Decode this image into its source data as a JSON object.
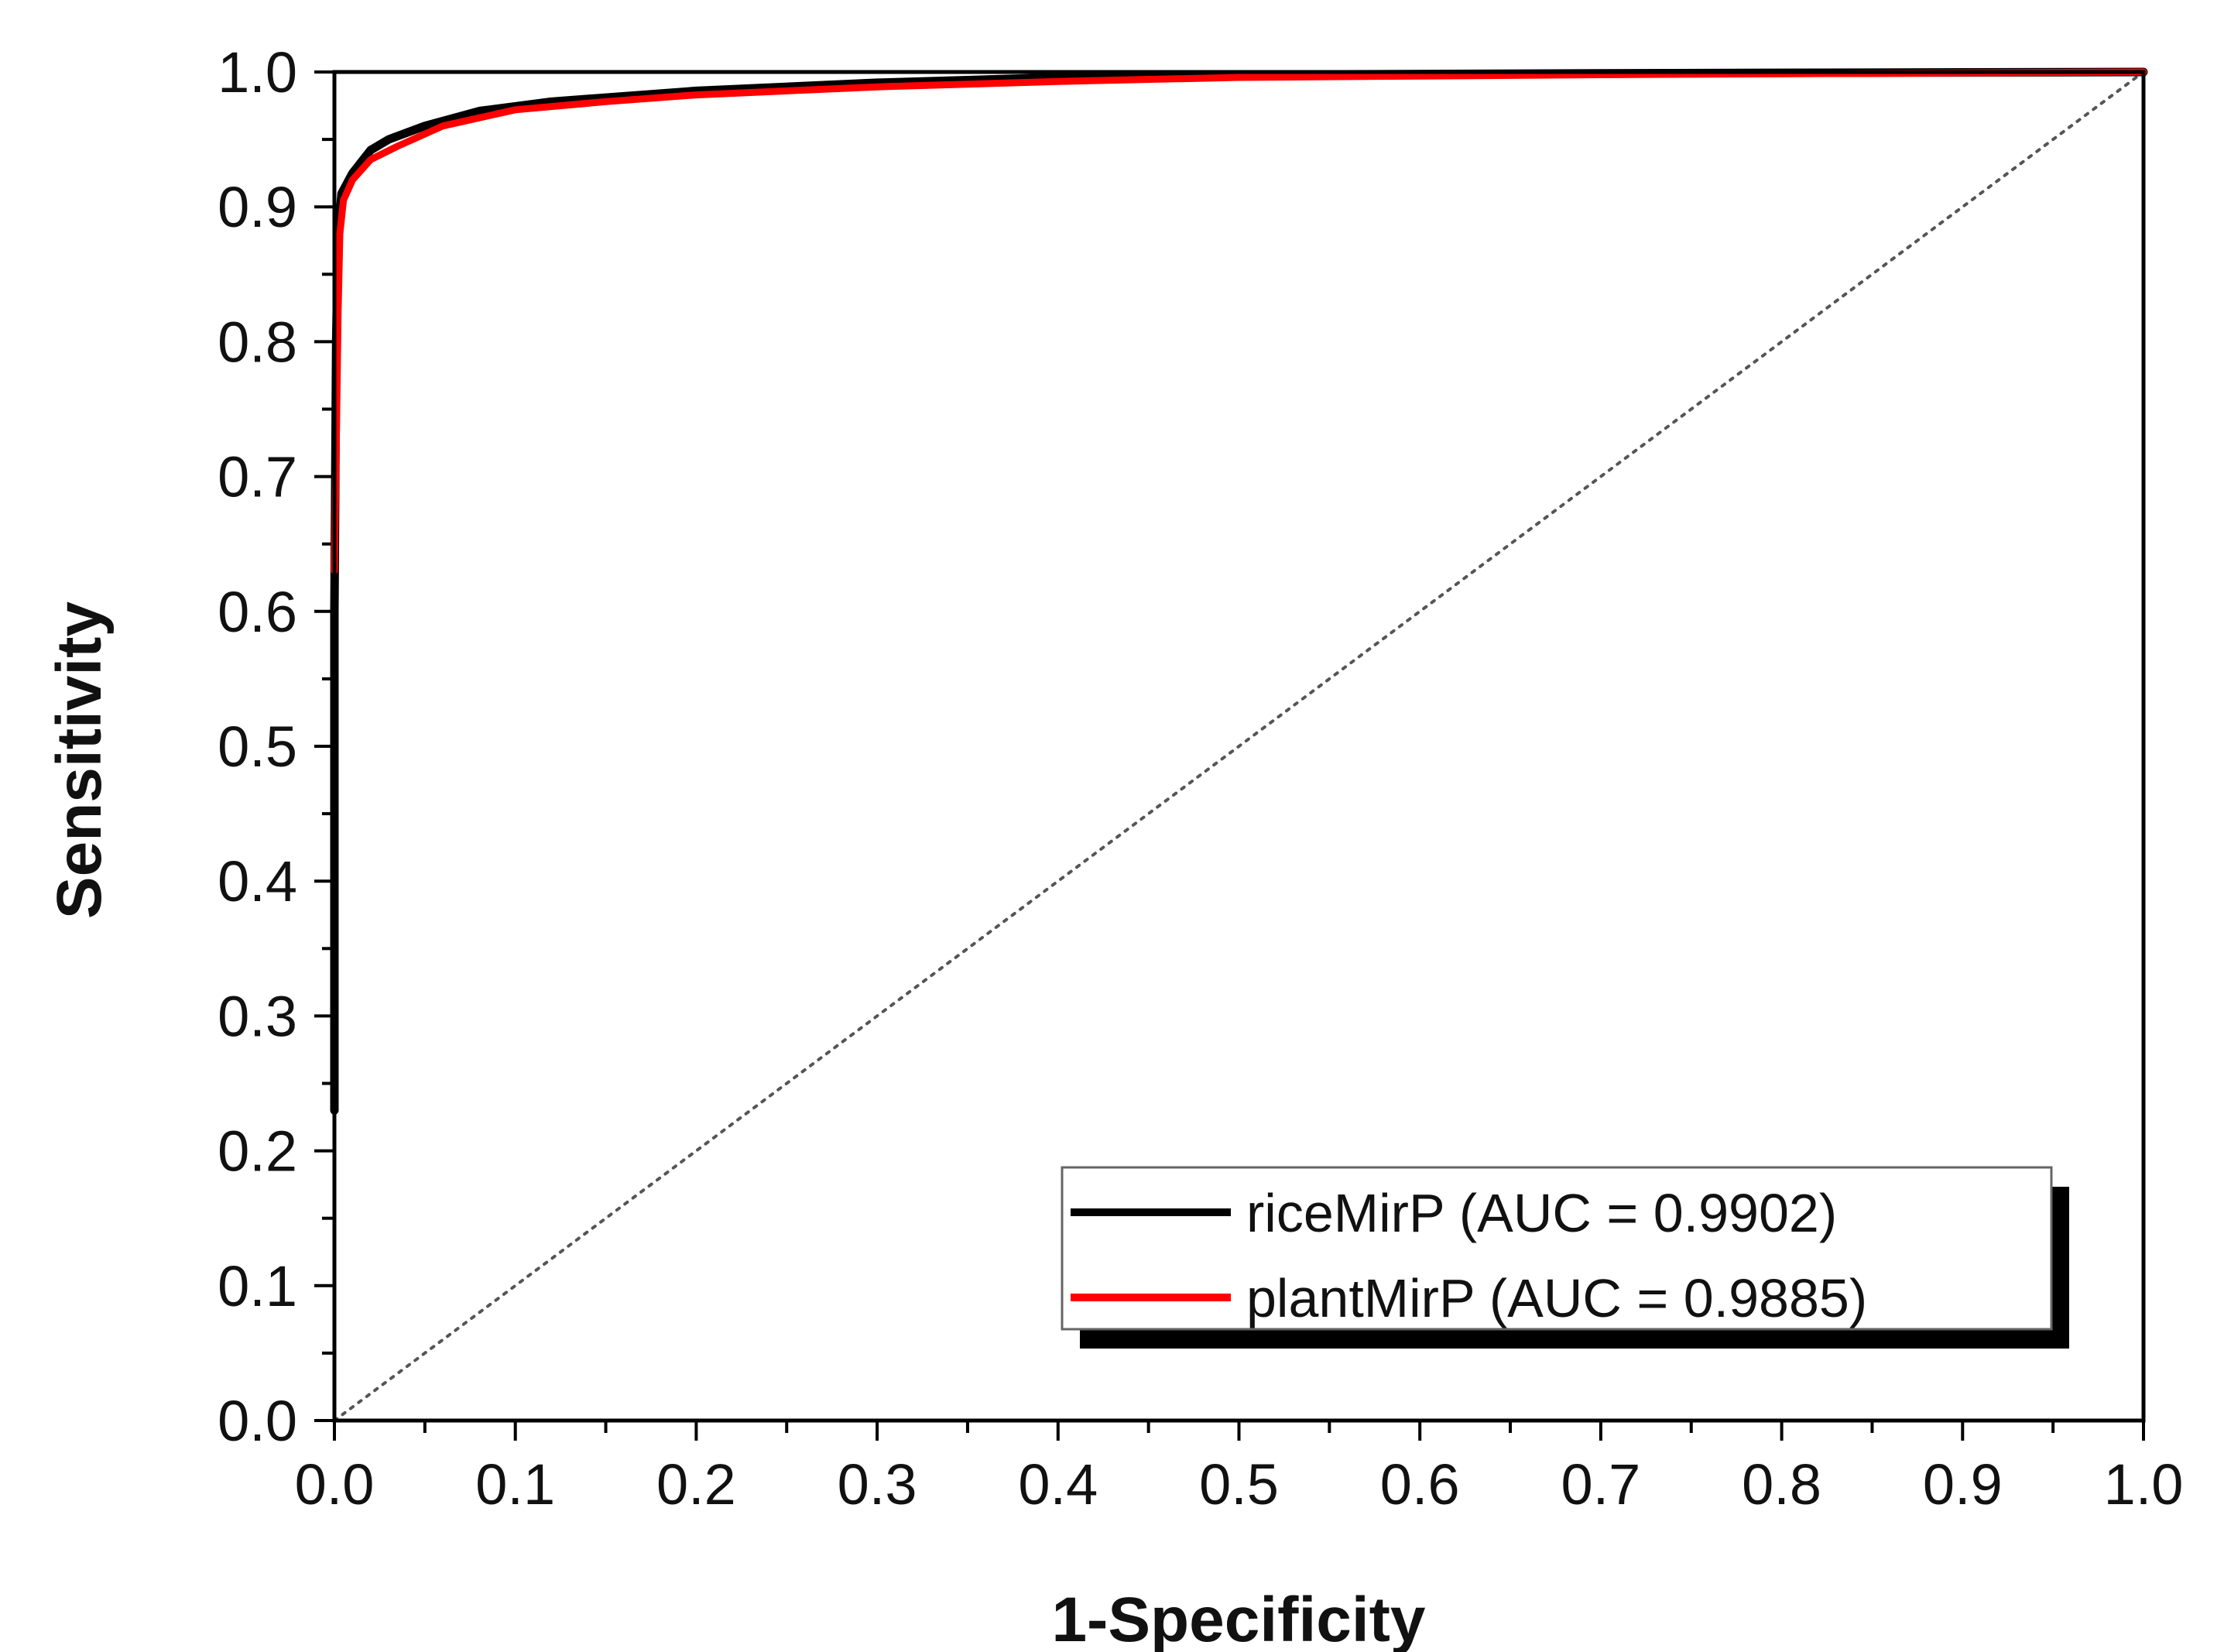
{
  "chart_data": {
    "type": "line",
    "title": "",
    "xlabel": "1-Specificity",
    "ylabel": "Sensitivity",
    "xlim": [
      0.0,
      1.0
    ],
    "ylim": [
      0.0,
      1.0
    ],
    "xticks": [
      "0.0",
      "0.1",
      "0.2",
      "0.3",
      "0.4",
      "0.5",
      "0.6",
      "0.7",
      "0.8",
      "0.9",
      "1.0"
    ],
    "yticks": [
      "0.0",
      "0.1",
      "0.2",
      "0.3",
      "0.4",
      "0.5",
      "0.6",
      "0.7",
      "0.8",
      "0.9",
      "1.0"
    ],
    "grid": false,
    "legend_position": "bottom-right",
    "diagonal_reference": {
      "style": "dotted",
      "color": "#555555",
      "points": [
        [
          0,
          0
        ],
        [
          1,
          1
        ]
      ]
    },
    "series": [
      {
        "name": "riceMirP (AUC = 0.9902)",
        "color": "#000000",
        "points": [
          [
            0,
            0.23
          ],
          [
            0,
            0.6
          ],
          [
            0.001,
            0.8
          ],
          [
            0.002,
            0.88
          ],
          [
            0.004,
            0.91
          ],
          [
            0.01,
            0.925
          ],
          [
            0.02,
            0.942
          ],
          [
            0.03,
            0.95
          ],
          [
            0.05,
            0.96
          ],
          [
            0.08,
            0.971
          ],
          [
            0.12,
            0.978
          ],
          [
            0.2,
            0.986
          ],
          [
            0.3,
            0.992
          ],
          [
            0.4,
            0.996
          ],
          [
            0.5,
            0.998
          ],
          [
            0.7,
            0.999
          ],
          [
            1.0,
            1.0
          ]
        ]
      },
      {
        "name": "plantMirP (AUC = 0.9885)",
        "color": "#ff0000",
        "points": [
          [
            0,
            0.63
          ],
          [
            0.001,
            0.72
          ],
          [
            0.002,
            0.82
          ],
          [
            0.003,
            0.88
          ],
          [
            0.005,
            0.905
          ],
          [
            0.01,
            0.92
          ],
          [
            0.02,
            0.935
          ],
          [
            0.035,
            0.945
          ],
          [
            0.06,
            0.96
          ],
          [
            0.1,
            0.972
          ],
          [
            0.15,
            0.978
          ],
          [
            0.2,
            0.983
          ],
          [
            0.3,
            0.989
          ],
          [
            0.4,
            0.993
          ],
          [
            0.5,
            0.996
          ],
          [
            0.7,
            0.998
          ],
          [
            1.0,
            1.0
          ]
        ]
      }
    ]
  }
}
